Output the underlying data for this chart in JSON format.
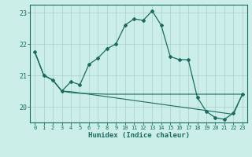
{
  "xlabel": "Humidex (Indice chaleur)",
  "background_color": "#cceee8",
  "grid_color": "#aacccc",
  "line_color": "#1a6b60",
  "x_values": [
    0,
    1,
    2,
    3,
    4,
    5,
    6,
    7,
    8,
    9,
    10,
    11,
    12,
    13,
    14,
    15,
    16,
    17,
    18,
    19,
    20,
    21,
    22,
    23
  ],
  "y_main": [
    21.75,
    21.0,
    20.85,
    20.5,
    20.8,
    20.7,
    21.35,
    21.55,
    21.85,
    22.0,
    22.6,
    22.8,
    22.75,
    23.05,
    22.6,
    21.6,
    21.5,
    21.5,
    20.3,
    19.85,
    19.65,
    19.6,
    19.8,
    20.4
  ],
  "y_flat": [
    21.75,
    21.0,
    20.85,
    20.5,
    20.45,
    20.43,
    20.42,
    20.41,
    20.4,
    20.4,
    20.4,
    20.4,
    20.4,
    20.4,
    20.4,
    20.4,
    20.4,
    20.4,
    20.4,
    20.4,
    20.4,
    20.4,
    20.4,
    20.4
  ],
  "y_decline": [
    21.75,
    21.0,
    20.85,
    20.5,
    20.48,
    20.44,
    20.4,
    20.36,
    20.32,
    20.28,
    20.24,
    20.2,
    20.16,
    20.12,
    20.08,
    20.04,
    20.0,
    19.96,
    19.92,
    19.88,
    19.84,
    19.8,
    19.76,
    20.4
  ],
  "ylim": [
    19.5,
    23.25
  ],
  "xlim": [
    -0.5,
    23.5
  ],
  "yticks": [
    20,
    21,
    22,
    23
  ],
  "xticks": [
    0,
    1,
    2,
    3,
    4,
    5,
    6,
    7,
    8,
    9,
    10,
    11,
    12,
    13,
    14,
    15,
    16,
    17,
    18,
    19,
    20,
    21,
    22,
    23
  ]
}
